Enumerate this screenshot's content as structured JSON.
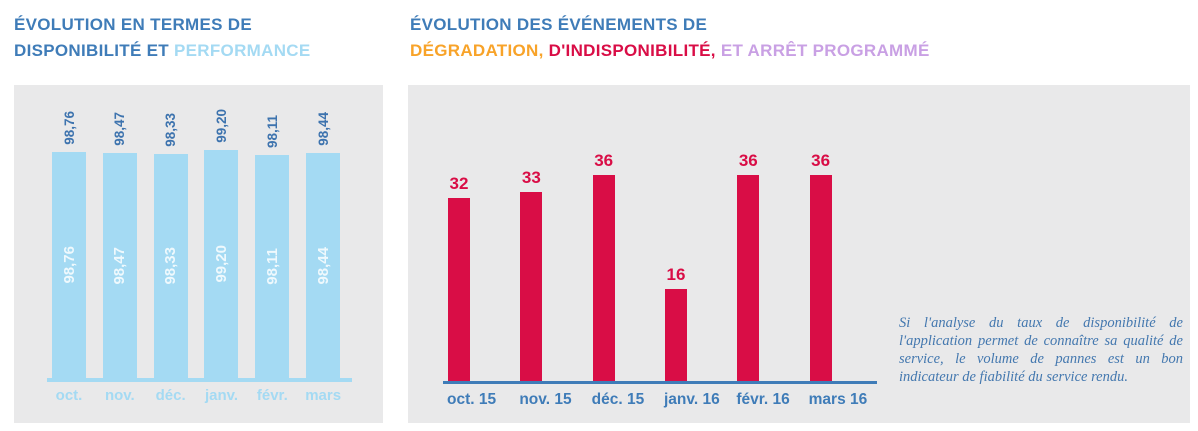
{
  "page": {
    "background": "#ffffff",
    "panel_background": "#e9e9ea"
  },
  "colors": {
    "steel_blue": "#3f7cb8",
    "dark_value_blue": "#3d73ae",
    "light_blue": "#a4daf3",
    "red": "#d90d46",
    "orange": "#f8a329",
    "purple": "#c9a0e4",
    "annotation_blue": "#4478af"
  },
  "left_chart": {
    "title_line1": "ÉVOLUTION EN TERMES DE",
    "title_line2_dark": "DISPONIBILITÉ ET ",
    "title_line2_light": "PERFORMANCE"
  },
  "right_chart": {
    "title_line1": "ÉVOLUTION DES ÉVÉNEMENTS DE",
    "title_line2_orange": "DÉGRADATION, ",
    "title_line2_red": "D'INDISPONIBILITÉ, ",
    "title_line2_purple": "ET ARRÊT PROGRAMMÉ"
  },
  "annotation": {
    "text": "Si l'analyse du taux de disponibilité de l'application permet de connaître sa qualité de service, le volume de pannes est un bon indicateur de fiabilité du service rendu."
  },
  "chart_data": [
    {
      "id": "availability-performance",
      "type": "bar",
      "title": "ÉVOLUTION EN TERMES DE DISPONIBILITÉ ET PERFORMANCE",
      "categories": [
        "oct.",
        "nov.",
        "déc.",
        "janv.",
        "févr.",
        "mars"
      ],
      "values": [
        98.76,
        98.47,
        98.33,
        99.2,
        98.11,
        98.44
      ],
      "value_labels": [
        "98,76",
        "98,47",
        "98,33",
        "99,20",
        "98,11",
        "98,44"
      ],
      "value_labels_rotated": true,
      "value_labels_repeated_inside_bars": true,
      "bar_color": "#a4daf3",
      "value_label_color": "#3d73ae",
      "inner_label_color": "rgba(255,255,255,0.82)",
      "axis_color": "#a4daf3",
      "category_label_color": "#a4daf3",
      "ylim": [
        52.6,
        100
      ],
      "grid": false,
      "legend": "none"
    },
    {
      "id": "events",
      "type": "bar",
      "title": "ÉVOLUTION DES ÉVÉNEMENTS DE DÉGRADATION, D'INDISPONIBILITÉ, ET ARRÊT PROGRAMMÉ",
      "categories": [
        "oct. 15",
        "nov. 15",
        "déc. 15",
        "janv. 16",
        "févr. 16",
        "mars 16"
      ],
      "values": [
        32,
        33,
        36,
        16,
        36,
        36
      ],
      "value_labels": [
        "32",
        "33",
        "36",
        "16",
        "36",
        "36"
      ],
      "value_labels_rotated": false,
      "value_labels_repeated_inside_bars": false,
      "bar_color": "#d90d46",
      "value_label_color": "#d90d46",
      "axis_color": "#3f7cb8",
      "category_label_color": "#3f7cb8",
      "ylim": [
        0,
        38
      ],
      "grid": false,
      "legend": "none"
    }
  ]
}
